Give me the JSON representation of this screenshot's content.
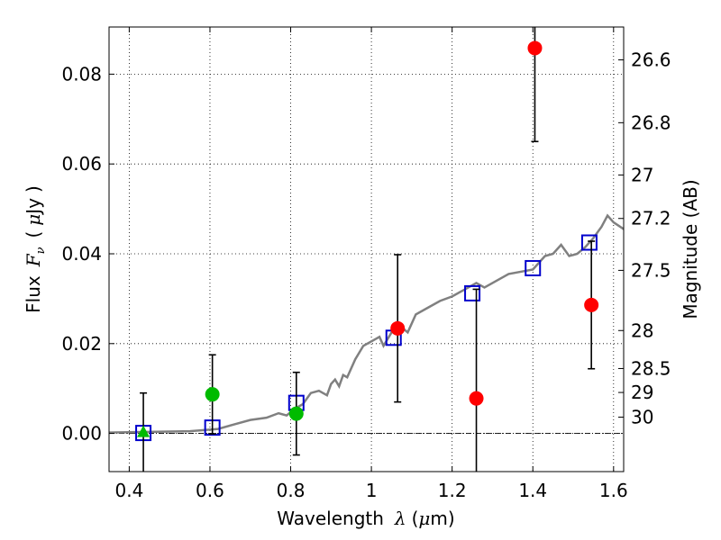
{
  "chart_data": {
    "type": "scatter",
    "xlabel": "Wavelength",
    "xlabel_symbol": "λ",
    "xlabel_unit_open": "(",
    "xlabel_unit_mu": "μ",
    "xlabel_unit_rest": "m)",
    "ylabel": "Flux",
    "ylabel_symbol": "F",
    "ylabel_subscript": "ν",
    "ylabel_unit_open": "(",
    "ylabel_unit_mu": "μ",
    "ylabel_unit_rest": "Jy",
    "ylabel_unit_close": ")",
    "y2label": "Magnitude (AB)",
    "xlim": [
      0.35,
      1.625
    ],
    "ylim": [
      -0.0085,
      0.0905
    ],
    "grid": true,
    "xticks": [
      {
        "value": 0.4,
        "label": "0.4"
      },
      {
        "value": 0.6,
        "label": "0.6"
      },
      {
        "value": 0.8,
        "label": "0.8"
      },
      {
        "value": 1.0,
        "label": "1"
      },
      {
        "value": 1.2,
        "label": "1.2"
      },
      {
        "value": 1.4,
        "label": "1.4"
      },
      {
        "value": 1.6,
        "label": "1.6"
      }
    ],
    "yticks": [
      {
        "value": 0.0,
        "label": "0.00"
      },
      {
        "value": 0.02,
        "label": "0.02"
      },
      {
        "value": 0.04,
        "label": "0.04"
      },
      {
        "value": 0.06,
        "label": "0.06"
      },
      {
        "value": 0.08,
        "label": "0.08"
      }
    ],
    "y2ticks": [
      {
        "mag": 26.6,
        "label": "26.6"
      },
      {
        "mag": 26.8,
        "label": "26.8"
      },
      {
        "mag": 27.0,
        "label": "27"
      },
      {
        "mag": 27.2,
        "label": "27.2"
      },
      {
        "mag": 27.5,
        "label": "27.5"
      },
      {
        "mag": 28.0,
        "label": "28"
      },
      {
        "mag": 28.5,
        "label": "28.5"
      },
      {
        "mag": 29.0,
        "label": "29"
      },
      {
        "mag": 30.0,
        "label": "30"
      }
    ],
    "series": [
      {
        "name": "model SED",
        "kind": "line",
        "color": "#808080",
        "x": [
          0.35,
          0.55,
          0.62,
          0.66,
          0.7,
          0.74,
          0.77,
          0.79,
          0.81,
          0.83,
          0.85,
          0.87,
          0.89,
          0.9,
          0.91,
          0.92,
          0.93,
          0.94,
          0.96,
          0.98,
          1.0,
          1.02,
          1.03,
          1.05,
          1.07,
          1.09,
          1.11,
          1.14,
          1.17,
          1.2,
          1.23,
          1.26,
          1.28,
          1.31,
          1.34,
          1.37,
          1.4,
          1.43,
          1.45,
          1.47,
          1.49,
          1.51,
          1.53,
          1.55,
          1.57,
          1.585,
          1.6,
          1.625
        ],
        "y": [
          0.0002,
          0.0005,
          0.001,
          0.002,
          0.003,
          0.0035,
          0.0045,
          0.004,
          0.0055,
          0.0065,
          0.009,
          0.0095,
          0.0085,
          0.011,
          0.012,
          0.0105,
          0.013,
          0.0125,
          0.0165,
          0.0195,
          0.0205,
          0.0215,
          0.0195,
          0.0225,
          0.024,
          0.0225,
          0.0265,
          0.028,
          0.0295,
          0.0305,
          0.032,
          0.0335,
          0.0325,
          0.034,
          0.0355,
          0.036,
          0.0365,
          0.0395,
          0.04,
          0.042,
          0.0395,
          0.04,
          0.0415,
          0.0435,
          0.046,
          0.0485,
          0.047,
          0.0455
        ]
      },
      {
        "name": "model fluxes",
        "kind": "open-square",
        "color": "#0000cc",
        "x": [
          0.435,
          0.606,
          0.814,
          1.055,
          1.25,
          1.4,
          1.54
        ],
        "y": [
          0.0001,
          0.0013,
          0.0068,
          0.0213,
          0.0312,
          0.0368,
          0.0425
        ]
      },
      {
        "name": "green circles",
        "kind": "circle",
        "color": "#00bb00",
        "x": [
          0.606,
          0.814
        ],
        "y": [
          0.0087,
          0.0044
        ],
        "err": [
          0.0088,
          0.0092
        ]
      },
      {
        "name": "green triangle",
        "kind": "triangle",
        "color": "#00bb00",
        "x": [
          0.435
        ],
        "y": [
          0.0002
        ],
        "err": [
          0.0088
        ]
      },
      {
        "name": "red circles",
        "kind": "circle",
        "color": "#ff0000",
        "x": [
          1.065,
          1.26,
          1.405,
          1.545
        ],
        "y": [
          0.0234,
          0.0078,
          0.0858,
          0.0286
        ],
        "err": [
          0.0164,
          0.0243,
          0.0208,
          0.0142
        ]
      }
    ]
  }
}
